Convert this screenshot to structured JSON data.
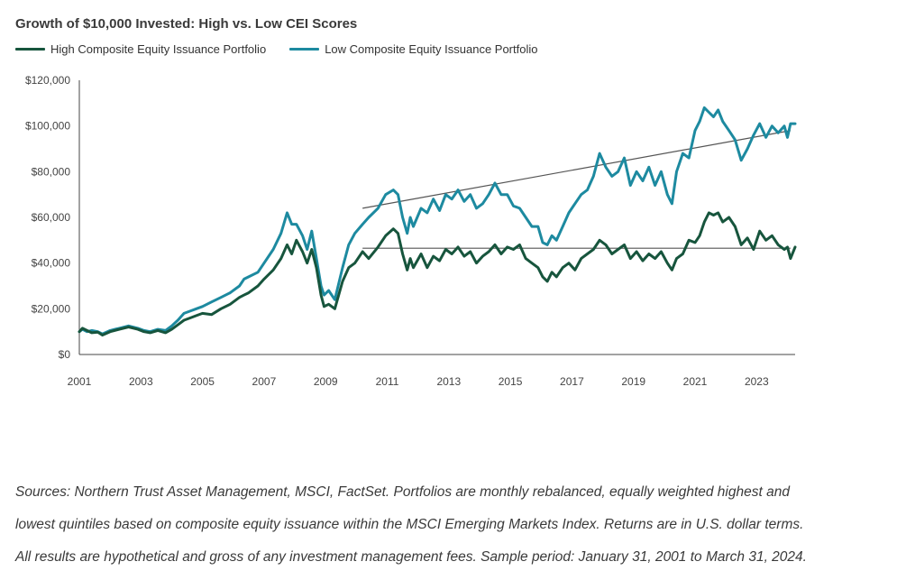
{
  "chart_data": {
    "type": "line",
    "title": "Growth of $10,000 Invested: High vs. Low CEI Scores",
    "xlabel": "",
    "ylabel": "",
    "xlim": [
      2001.0,
      2024.25
    ],
    "ylim": [
      0,
      120000
    ],
    "y_ticks": [
      "$0",
      "$20,000",
      "$40,000",
      "$60,000",
      "$80,000",
      "$100,000",
      "$120,000"
    ],
    "x_ticks": [
      "2001",
      "2003",
      "2005",
      "2007",
      "2009",
      "2011",
      "2013",
      "2015",
      "2017",
      "2019",
      "2021",
      "2023"
    ],
    "grid": false,
    "legend_position": "top-left",
    "colors": {
      "high": "#17553d",
      "low": "#1d8aa0",
      "trend": "#555555"
    },
    "series": [
      {
        "name": "High Composite Equity Issuance Portfolio",
        "x": [
          2001.0,
          2001.1,
          2001.25,
          2001.4,
          2001.6,
          2001.75,
          2002.0,
          2002.3,
          2002.6,
          2002.9,
          2003.1,
          2003.3,
          2003.55,
          2003.8,
          2004.0,
          2004.2,
          2004.4,
          2004.6,
          2004.8,
          2005.0,
          2005.3,
          2005.6,
          2005.9,
          2006.2,
          2006.35,
          2006.5,
          2006.8,
          2007.0,
          2007.3,
          2007.55,
          2007.75,
          2007.9,
          2008.05,
          2008.25,
          2008.4,
          2008.55,
          2008.7,
          2008.85,
          2008.95,
          2009.1,
          2009.3,
          2009.55,
          2009.75,
          2009.95,
          2010.2,
          2010.4,
          2010.7,
          2010.95,
          2011.2,
          2011.35,
          2011.5,
          2011.65,
          2011.75,
          2011.85,
          2012.1,
          2012.3,
          2012.5,
          2012.7,
          2012.9,
          2013.1,
          2013.3,
          2013.5,
          2013.7,
          2013.9,
          2014.1,
          2014.3,
          2014.5,
          2014.7,
          2014.9,
          2015.1,
          2015.3,
          2015.5,
          2015.7,
          2015.9,
          2016.05,
          2016.2,
          2016.35,
          2016.5,
          2016.7,
          2016.9,
          2017.1,
          2017.3,
          2017.5,
          2017.7,
          2017.9,
          2018.1,
          2018.3,
          2018.5,
          2018.7,
          2018.9,
          2019.1,
          2019.3,
          2019.5,
          2019.7,
          2019.9,
          2020.1,
          2020.25,
          2020.4,
          2020.6,
          2020.8,
          2021.0,
          2021.15,
          2021.3,
          2021.45,
          2021.6,
          2021.75,
          2021.9,
          2022.1,
          2022.3,
          2022.5,
          2022.7,
          2022.9,
          2023.1,
          2023.3,
          2023.5,
          2023.7,
          2023.9,
          2024.0,
          2024.1,
          2024.25
        ],
        "values": [
          10000,
          11500,
          10500,
          9500,
          9800,
          8500,
          10000,
          11000,
          12000,
          11000,
          10000,
          9500,
          10500,
          9500,
          11000,
          13000,
          15000,
          16000,
          17000,
          18000,
          17500,
          20000,
          22000,
          25000,
          26000,
          27000,
          30000,
          33000,
          37000,
          42000,
          48000,
          44000,
          50000,
          45000,
          40000,
          46000,
          38000,
          26000,
          21000,
          22000,
          20000,
          32000,
          38000,
          40000,
          45000,
          42000,
          47000,
          52000,
          55000,
          53000,
          44000,
          37000,
          42000,
          38000,
          44000,
          38000,
          43000,
          41000,
          46000,
          44000,
          47000,
          43000,
          45000,
          40000,
          43000,
          45000,
          48000,
          44000,
          47000,
          46000,
          48000,
          42000,
          40000,
          38000,
          34000,
          32000,
          36000,
          34000,
          38000,
          40000,
          37000,
          42000,
          44000,
          46000,
          50000,
          48000,
          44000,
          46000,
          48000,
          42000,
          45000,
          41000,
          44000,
          42000,
          45000,
          40000,
          37000,
          42000,
          44000,
          50000,
          49000,
          52000,
          58000,
          62000,
          61000,
          62000,
          58000,
          60000,
          56000,
          48000,
          51000,
          46000,
          54000,
          50000,
          52000,
          48000,
          46000,
          47000,
          42000,
          47000
        ],
        "color": "#17553d"
      },
      {
        "name": "Low Composite Equity Issuance Portfolio",
        "x": [
          2001.0,
          2001.1,
          2001.25,
          2001.4,
          2001.6,
          2001.75,
          2002.0,
          2002.3,
          2002.6,
          2002.9,
          2003.1,
          2003.3,
          2003.55,
          2003.8,
          2004.0,
          2004.2,
          2004.4,
          2004.6,
          2004.8,
          2005.0,
          2005.3,
          2005.6,
          2005.9,
          2006.2,
          2006.35,
          2006.5,
          2006.8,
          2007.0,
          2007.3,
          2007.55,
          2007.75,
          2007.9,
          2008.05,
          2008.25,
          2008.4,
          2008.55,
          2008.7,
          2008.85,
          2008.95,
          2009.1,
          2009.3,
          2009.55,
          2009.75,
          2009.95,
          2010.2,
          2010.4,
          2010.7,
          2010.95,
          2011.2,
          2011.35,
          2011.5,
          2011.65,
          2011.75,
          2011.85,
          2012.1,
          2012.3,
          2012.5,
          2012.7,
          2012.9,
          2013.1,
          2013.3,
          2013.5,
          2013.7,
          2013.9,
          2014.1,
          2014.3,
          2014.5,
          2014.7,
          2014.9,
          2015.1,
          2015.3,
          2015.5,
          2015.7,
          2015.9,
          2016.05,
          2016.2,
          2016.35,
          2016.5,
          2016.7,
          2016.9,
          2017.1,
          2017.3,
          2017.5,
          2017.7,
          2017.9,
          2018.1,
          2018.3,
          2018.5,
          2018.7,
          2018.9,
          2019.1,
          2019.3,
          2019.5,
          2019.7,
          2019.9,
          2020.1,
          2020.25,
          2020.4,
          2020.6,
          2020.8,
          2021.0,
          2021.15,
          2021.3,
          2021.45,
          2021.6,
          2021.75,
          2021.9,
          2022.1,
          2022.3,
          2022.5,
          2022.7,
          2022.9,
          2023.1,
          2023.3,
          2023.5,
          2023.7,
          2023.9,
          2024.0,
          2024.1,
          2024.25
        ],
        "values": [
          10000,
          11000,
          10000,
          10500,
          10000,
          9000,
          10500,
          11500,
          12500,
          11500,
          10500,
          10000,
          11000,
          10500,
          12500,
          15000,
          18000,
          19000,
          20000,
          21000,
          23000,
          25000,
          27000,
          30000,
          33000,
          34000,
          36000,
          40000,
          46000,
          53000,
          62000,
          57000,
          57000,
          52000,
          46000,
          54000,
          42000,
          30000,
          26000,
          28000,
          24000,
          38000,
          48000,
          53000,
          57000,
          60000,
          64000,
          70000,
          72000,
          70000,
          60000,
          53000,
          60000,
          56000,
          64000,
          62000,
          68000,
          63000,
          70000,
          68000,
          72000,
          67000,
          70000,
          64000,
          66000,
          70000,
          75000,
          70000,
          70000,
          65000,
          64000,
          60000,
          56000,
          56000,
          49000,
          48000,
          52000,
          50000,
          56000,
          62000,
          66000,
          70000,
          72000,
          78000,
          88000,
          82000,
          78000,
          80000,
          86000,
          74000,
          80000,
          76000,
          82000,
          74000,
          80000,
          70000,
          66000,
          80000,
          88000,
          86000,
          98000,
          102000,
          108000,
          106000,
          104000,
          107000,
          102000,
          98000,
          94000,
          85000,
          90000,
          96000,
          101000,
          95000,
          100000,
          97000,
          100000,
          95000,
          101000,
          101000
        ],
        "color": "#1d8aa0"
      }
    ],
    "trendlines": [
      {
        "x": [
          2010.2,
          2024.1
        ],
        "values": [
          64000,
          98000
        ]
      },
      {
        "x": [
          2010.2,
          2024.1
        ],
        "values": [
          46500,
          46500
        ]
      }
    ]
  },
  "sources": {
    "line1": "Sources: Northern Trust Asset Management, MSCI, FactSet. Portfolios are monthly rebalanced, equally weighted highest and",
    "line2": "lowest quintiles based on composite equity issuance within the MSCI Emerging Markets Index. Returns are in U.S. dollar terms.",
    "line3": "All results are hypothetical and gross of any investment management fees. Sample period: January 31, 2001 to March 31, 2024."
  }
}
